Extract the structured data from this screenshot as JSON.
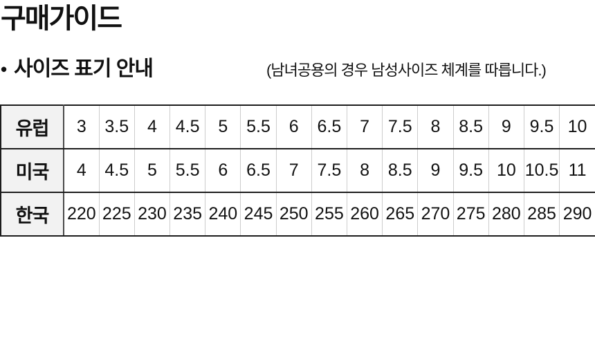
{
  "page": {
    "title": "구매가이드"
  },
  "section": {
    "bullet": "•",
    "title": "사이즈 표기 안내",
    "note": "(남녀공용의 경우 남성사이즈 체계를 따릅니다.)"
  },
  "size_table": {
    "rows": [
      {
        "key": "europe",
        "label": "유럽",
        "values": [
          "3",
          "3.5",
          "4",
          "4.5",
          "5",
          "5.5",
          "6",
          "6.5",
          "7",
          "7.5",
          "8",
          "8.5",
          "9",
          "9.5",
          "10"
        ]
      },
      {
        "key": "usa",
        "label": "미국",
        "values": [
          "4",
          "4.5",
          "5",
          "5.5",
          "6",
          "6.5",
          "7",
          "7.5",
          "8",
          "8.5",
          "9",
          "9.5",
          "10",
          "10.5",
          "11"
        ]
      },
      {
        "key": "korea",
        "label": "한국",
        "values": [
          "220",
          "225",
          "230",
          "235",
          "240",
          "245",
          "250",
          "255",
          "260",
          "265",
          "270",
          "275",
          "280",
          "285",
          "290"
        ]
      }
    ]
  },
  "colors": {
    "row_header_bg": "#f2f2f2",
    "border_dark": "#1c1c1c",
    "border_header_divider": "#4a4a4a",
    "border_light": "#cccccc",
    "text": "#111111",
    "background": "#ffffff"
  }
}
